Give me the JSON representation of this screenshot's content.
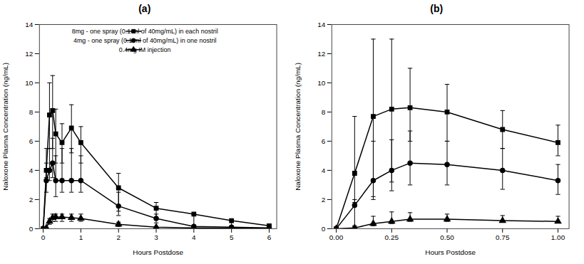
{
  "chart_data": [
    {
      "type": "line",
      "title": "(a)",
      "xlabel": "Hours Postdose",
      "ylabel": "Naloxone Plasma Concentration (ng/mL)",
      "xlim": [
        -0.1,
        6.2
      ],
      "xticks": [
        0,
        1,
        2,
        3,
        4,
        5,
        6
      ],
      "ylim": [
        0,
        14
      ],
      "yticks": [
        0,
        2,
        4,
        6,
        8,
        10,
        12,
        14
      ],
      "color": "#000000",
      "grid": false,
      "legend": "upper right",
      "series": [
        {
          "name": "8mg - one spray (0.1 ml of 40mg/mL) in each nostril",
          "marker": "square",
          "x": [
            0.0,
            0.083,
            0.167,
            0.25,
            0.333,
            0.5,
            0.75,
            1.0,
            2.0,
            3.0,
            4.0,
            5.0,
            6.0
          ],
          "values": [
            0.0,
            4.0,
            7.8,
            8.1,
            6.5,
            5.9,
            6.9,
            5.9,
            2.8,
            1.4,
            1.0,
            0.55,
            0.2
          ],
          "err_lo": [
            0.0,
            0.5,
            2.3,
            2.6,
            2.0,
            1.4,
            1.7,
            1.4,
            1.6,
            0.7,
            0.9,
            0.45,
            0.15
          ],
          "err_hi": [
            0.0,
            1.5,
            2.2,
            2.4,
            1.7,
            1.3,
            1.6,
            1.1,
            1.0,
            0.4,
            0.0,
            0.0,
            0.0
          ]
        },
        {
          "name": "4mg - one spray (0.1 ml of 40mg/mL) in one nostril",
          "marker": "circle",
          "x": [
            0.0,
            0.083,
            0.167,
            0.25,
            0.333,
            0.5,
            0.75,
            1.0,
            2.0,
            3.0,
            4.0,
            5.0,
            6.0
          ],
          "values": [
            0.0,
            3.3,
            4.0,
            4.5,
            3.3,
            3.3,
            3.3,
            3.3,
            1.55,
            0.7,
            0.15,
            0.1,
            0.05
          ],
          "err_lo": [
            0.0,
            0.8,
            0.7,
            1.0,
            1.1,
            0.8,
            0.8,
            0.8,
            0.65,
            0.3,
            0.1,
            0.07,
            0.03
          ],
          "err_hi": [
            0.0,
            1.2,
            1.5,
            1.7,
            1.7,
            2.2,
            2.2,
            1.7,
            0.95,
            0.3,
            0.0,
            0.0,
            0.0
          ]
        },
        {
          "name": "0.4mg IM injection",
          "marker": "triangle",
          "x": [
            0.0,
            0.083,
            0.167,
            0.25,
            0.333,
            0.5,
            0.75,
            1.0,
            2.0,
            3.0,
            4.0,
            5.0,
            6.0
          ],
          "values": [
            0.0,
            0.05,
            0.5,
            0.75,
            0.8,
            0.8,
            0.75,
            0.7,
            0.3,
            0.1,
            0.05,
            0.03,
            0.02
          ],
          "err_lo": [
            0.0,
            0.03,
            0.2,
            0.25,
            0.3,
            0.3,
            0.25,
            0.2,
            0.15,
            0.05,
            0.03,
            0.02,
            0.01
          ],
          "err_hi": [
            0.0,
            0.05,
            0.2,
            0.25,
            0.2,
            0.2,
            0.25,
            0.3,
            0.15,
            0.05,
            0.0,
            0.0,
            0.0
          ]
        }
      ]
    },
    {
      "type": "line",
      "title": "(b)",
      "xlabel": "Hours Postdose",
      "ylabel": "Naloxone Plasma Concentration (ng/mL)",
      "xlim": [
        -0.02,
        1.05
      ],
      "xticks": [
        {
          "value": 0,
          "label": "0.00"
        },
        {
          "value": 0.25,
          "label": "0.25"
        },
        {
          "value": 0.5,
          "label": "0.50"
        },
        {
          "value": 0.75,
          "label": "0.75"
        },
        {
          "value": 1.0,
          "label": "1.00"
        }
      ],
      "ylim": [
        0,
        14
      ],
      "yticks": [
        0,
        2,
        4,
        6,
        8,
        10,
        12,
        14
      ],
      "color": "#000000",
      "grid": false,
      "series": [
        {
          "marker": "square",
          "x": [
            0.0,
            0.083,
            0.167,
            0.25,
            0.333,
            0.5,
            0.75,
            1.0
          ],
          "values": [
            0.0,
            3.8,
            7.7,
            8.2,
            8.3,
            8.0,
            6.8,
            5.9
          ],
          "err_lo": [
            0.0,
            2.0,
            5.5,
            5.0,
            2.3,
            2.0,
            1.3,
            0.9
          ],
          "err_hi": [
            0.0,
            3.9,
            5.3,
            4.8,
            2.7,
            1.9,
            1.3,
            1.2
          ]
        },
        {
          "marker": "circle",
          "x": [
            0.0,
            0.083,
            0.167,
            0.25,
            0.333,
            0.5,
            0.75,
            1.0
          ],
          "values": [
            0.0,
            1.6,
            3.3,
            4.0,
            4.5,
            4.4,
            4.0,
            3.3
          ],
          "err_lo": [
            0.0,
            1.4,
            1.3,
            1.4,
            1.5,
            1.4,
            1.3,
            0.95
          ],
          "err_hi": [
            0.0,
            0.4,
            2.7,
            2.1,
            2.2,
            1.6,
            1.5,
            1.1
          ]
        },
        {
          "marker": "triangle",
          "x": [
            0.0,
            0.083,
            0.167,
            0.25,
            0.333,
            0.5,
            0.75,
            1.0
          ],
          "values": [
            0.0,
            0.05,
            0.35,
            0.5,
            0.65,
            0.65,
            0.55,
            0.5
          ],
          "err_lo": [
            0.0,
            0.03,
            0.15,
            0.15,
            0.15,
            0.15,
            0.1,
            0.1
          ],
          "err_hi": [
            0.0,
            0.1,
            0.5,
            0.65,
            0.45,
            0.35,
            0.35,
            0.35
          ]
        }
      ]
    }
  ]
}
